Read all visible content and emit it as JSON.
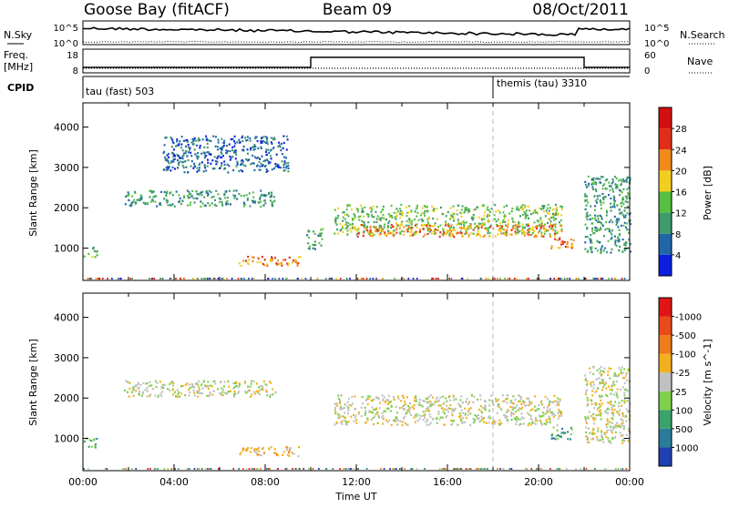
{
  "header": {
    "station": "Goose Bay (fitACF)",
    "beam": "Beam 09",
    "date": "08/Oct/2011"
  },
  "noise_panel": {
    "left_label": "N.Sky",
    "right_label": "N.Search",
    "left_ticks": [
      "10^5",
      "10^0"
    ],
    "right_ticks": [
      "10^5",
      "10^0"
    ]
  },
  "freq_panel": {
    "left_label_top": "Freq.",
    "left_label_bottom": "[MHz]",
    "right_label": "Nave",
    "left_ticks": [
      "18",
      "8"
    ],
    "right_ticks": [
      "60",
      "0"
    ]
  },
  "cpid": {
    "label": "CPID",
    "modes": [
      {
        "name": "tau (fast) 503",
        "start_hour": 0,
        "end_hour": 18
      },
      {
        "name": "themis (tau) 3310",
        "start_hour": 18,
        "end_hour": 24
      }
    ]
  },
  "chart_data": [
    {
      "type": "heatmap",
      "title": "",
      "xlabel": "",
      "ylabel": "Slant Range [km]",
      "xlim": [
        0,
        24
      ],
      "ylim": [
        200,
        4600
      ],
      "yticks": [
        "1000",
        "2000",
        "3000",
        "4000"
      ],
      "colorbar": {
        "label": "Power [dB]",
        "ticks": [
          "4",
          "8",
          "12",
          "16",
          "20",
          "24",
          "28"
        ],
        "colors": [
          "#0a1fe0",
          "#2166a8",
          "#3f9a6c",
          "#56c040",
          "#f2ce1e",
          "#f08a1a",
          "#e02d1a",
          "#d40f0f"
        ]
      },
      "regions": [
        {
          "t": [
            0.0,
            0.6
          ],
          "r": [
            800,
            1050
          ],
          "level": 3
        },
        {
          "t": [
            1.8,
            8.5
          ],
          "r": [
            2050,
            2450
          ],
          "level": 2
        },
        {
          "t": [
            3.5,
            9.0
          ],
          "r": [
            2900,
            3800
          ],
          "level": 1
        },
        {
          "t": [
            6.8,
            9.5
          ],
          "r": [
            580,
            820
          ],
          "level": 5
        },
        {
          "t": [
            9.8,
            10.5
          ],
          "r": [
            1000,
            1500
          ],
          "level": 2
        },
        {
          "t": [
            11.0,
            21.0
          ],
          "r": [
            1350,
            2100
          ],
          "level": 3
        },
        {
          "t": [
            12.0,
            21.0
          ],
          "r": [
            1300,
            1600
          ],
          "level": 5
        },
        {
          "t": [
            20.5,
            21.5
          ],
          "r": [
            1000,
            1300
          ],
          "level": 5
        },
        {
          "t": [
            22.0,
            24.0
          ],
          "r": [
            900,
            2800
          ],
          "level": 2
        }
      ]
    },
    {
      "type": "heatmap",
      "title": "",
      "xlabel": "Time UT",
      "ylabel": "Slant Range [km]",
      "xlim": [
        0,
        24
      ],
      "ylim": [
        200,
        4600
      ],
      "xticks": [
        "00:00",
        "04:00",
        "08:00",
        "12:00",
        "16:00",
        "20:00",
        "00:00"
      ],
      "yticks": [
        "1000",
        "2000",
        "3000",
        "4000"
      ],
      "colorbar": {
        "label": "Velocity [m s^-1]",
        "ticks": [
          "1000",
          "500",
          "100",
          "25",
          "-25",
          "-100",
          "-500",
          "-1000"
        ],
        "colors": [
          "#1f3fb4",
          "#2a7d9a",
          "#3ba36a",
          "#7fd04a",
          "#c0c0c0",
          "#f2b01e",
          "#f07b1a",
          "#e84a1a",
          "#e01515"
        ]
      },
      "regions": [
        {
          "t": [
            0.0,
            0.6
          ],
          "r": [
            800,
            1050
          ],
          "level": 2
        },
        {
          "t": [
            1.8,
            8.5
          ],
          "r": [
            2050,
            2450
          ],
          "level": 4
        },
        {
          "t": [
            6.8,
            9.5
          ],
          "r": [
            580,
            820
          ],
          "level": 5
        },
        {
          "t": [
            11.0,
            21.0
          ],
          "r": [
            1350,
            2100
          ],
          "level": 4
        },
        {
          "t": [
            20.5,
            21.5
          ],
          "r": [
            1000,
            1300
          ],
          "level": 2
        },
        {
          "t": [
            22.0,
            24.0
          ],
          "r": [
            900,
            2800
          ],
          "level": 4
        }
      ]
    }
  ]
}
